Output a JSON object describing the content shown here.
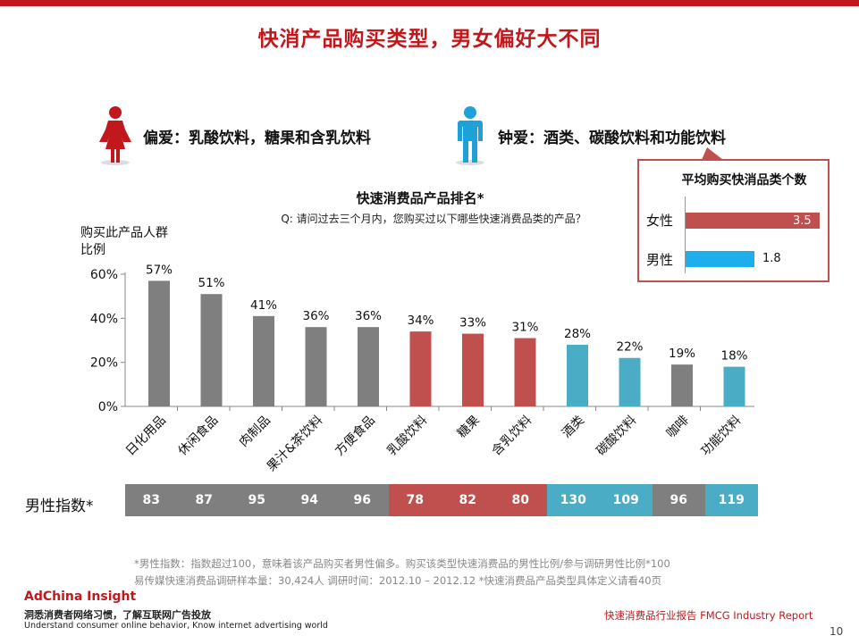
{
  "page_title": "快消产品购买类型，男女偏好大不同",
  "female_pref": {
    "text": "偏爱：乳酸饮料，糖果和含乳饮料",
    "icon": "female-person-icon",
    "color": "#c0181d"
  },
  "male_pref": {
    "text": "钟爱：酒类、碳酸饮料和功能饮料",
    "icon": "male-person-icon",
    "color": "#1ea0d8"
  },
  "avg_box": {
    "title": "平均购买快消品类个数",
    "rows": [
      {
        "label": "女性",
        "value": 3.5,
        "value_text": "3.5",
        "color": "#c0504d"
      },
      {
        "label": "男性",
        "value": 1.8,
        "value_text": "1.8",
        "color": "#1eaeeb"
      }
    ]
  },
  "chart_title": "快速消费品产品排名*",
  "chart_question": "Q: 请问过去三个月内，您购买过以下哪些快速消费品类的产品？",
  "ylabel": "购买此产品人群比例",
  "chart_data": {
    "type": "bar",
    "title": "快速消费品产品排名*",
    "ylabel": "购买此产品人群比例",
    "ylim": [
      0,
      60
    ],
    "yticks": [
      "0%",
      "20%",
      "40%",
      "60%"
    ],
    "grid": false,
    "categories": [
      "日化用品",
      "休闲食品",
      "肉制品",
      "果汁&茶饮料",
      "方便食品",
      "乳酸饮料",
      "糖果",
      "含乳饮料",
      "酒类",
      "碳酸饮料",
      "咖啡",
      "功能饮料"
    ],
    "values": [
      57,
      51,
      41,
      36,
      36,
      34,
      33,
      31,
      28,
      22,
      19,
      18
    ],
    "value_labels": [
      "57%",
      "51%",
      "41%",
      "36%",
      "36%",
      "34%",
      "33%",
      "31%",
      "28%",
      "22%",
      "19%",
      "18%"
    ],
    "colors": [
      "#7f7f7f",
      "#7f7f7f",
      "#7f7f7f",
      "#7f7f7f",
      "#7f7f7f",
      "#c0504d",
      "#c0504d",
      "#c0504d",
      "#4bacc6",
      "#4bacc6",
      "#7f7f7f",
      "#4bacc6"
    ]
  },
  "index_row": {
    "label": "男性指数*",
    "values": [
      "83",
      "87",
      "95",
      "94",
      "96",
      "78",
      "82",
      "80",
      "130",
      "109",
      "96",
      "119"
    ],
    "colors": [
      "#7f7f7f",
      "#7f7f7f",
      "#7f7f7f",
      "#7f7f7f",
      "#7f7f7f",
      "#c0504d",
      "#c0504d",
      "#c0504d",
      "#4bacc6",
      "#4bacc6",
      "#7f7f7f",
      "#4bacc6"
    ]
  },
  "footnote": {
    "line1": "*男性指数：指数超过100，意味着该产品购买者男性偏多。购买该类型快速消费品的男性比例/参与调研男性比例*100",
    "line2": "易传媒快速消费品调研样本量：30,424人 调研时间：2012.10 – 2012.12 *快速消费品产品类型具体定义请看40页"
  },
  "brand": {
    "name": "AdChina Insight",
    "cn": "洞悉消费者网络习惯，了解互联网广告投放",
    "en": "Understand consumer online behavior, Know internet advertising world"
  },
  "report_label": "快速消费品行业报告    FMCG Industry Report",
  "page_number": "10"
}
